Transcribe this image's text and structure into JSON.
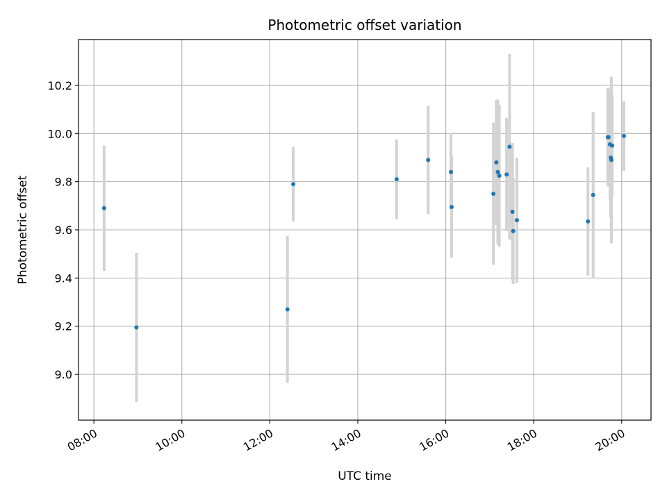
{
  "chart_data": {
    "type": "scatter",
    "title": "Photometric offset variation",
    "xlabel": "UTC time",
    "ylabel": "Photometric offset",
    "x_ticks": [
      "08:00",
      "10:00",
      "12:00",
      "14:00",
      "16:00",
      "18:00",
      "20:00"
    ],
    "y_ticks": [
      "9.0",
      "9.2",
      "9.4",
      "9.6",
      "9.8",
      "10.0",
      "10.2"
    ],
    "xlim": [
      "07:39",
      "20:40"
    ],
    "ylim": [
      8.81,
      10.39
    ],
    "grid": true,
    "colors": {
      "marker": "#1f77b4",
      "errorbar": "#d3d3d3",
      "grid": "#b0b0b0"
    },
    "points": [
      {
        "x": "08:14",
        "y": 9.69,
        "yerr": 0.26
      },
      {
        "x": "08:58",
        "y": 9.195,
        "yerr": 0.31
      },
      {
        "x": "12:24",
        "y": 9.27,
        "yerr": 0.305
      },
      {
        "x": "12:32",
        "y": 9.79,
        "yerr": 0.155
      },
      {
        "x": "14:53",
        "y": 9.81,
        "yerr": 0.165
      },
      {
        "x": "15:36",
        "y": 9.89,
        "yerr": 0.225
      },
      {
        "x": "16:07",
        "y": 9.84,
        "yerr": 0.16
      },
      {
        "x": "16:08",
        "y": 9.695,
        "yerr": 0.21
      },
      {
        "x": "17:05",
        "y": 9.75,
        "yerr": 0.295
      },
      {
        "x": "17:09",
        "y": 9.88,
        "yerr": 0.26
      },
      {
        "x": "17:11",
        "y": 9.84,
        "yerr": 0.3
      },
      {
        "x": "17:13",
        "y": 9.825,
        "yerr": 0.295
      },
      {
        "x": "17:23",
        "y": 9.83,
        "yerr": 0.235
      },
      {
        "x": "17:27",
        "y": 9.945,
        "yerr": 0.385
      },
      {
        "x": "17:31",
        "y": 9.675,
        "yerr": 0.285
      },
      {
        "x": "17:32",
        "y": 9.595,
        "yerr": 0.22
      },
      {
        "x": "17:37",
        "y": 9.64,
        "yerr": 0.26
      },
      {
        "x": "19:14",
        "y": 9.635,
        "yerr": 0.225
      },
      {
        "x": "19:21",
        "y": 9.745,
        "yerr": 0.345
      },
      {
        "x": "19:41",
        "y": 9.985,
        "yerr": 0.2
      },
      {
        "x": "19:42",
        "y": 9.985,
        "yerr": 0.205
      },
      {
        "x": "19:44",
        "y": 9.955,
        "yerr": 0.23
      },
      {
        "x": "19:45",
        "y": 9.9,
        "yerr": 0.25
      },
      {
        "x": "19:46",
        "y": 9.89,
        "yerr": 0.345
      },
      {
        "x": "19:47",
        "y": 9.95,
        "yerr": 0.21
      },
      {
        "x": "20:03",
        "y": 9.99,
        "yerr": 0.145
      }
    ]
  }
}
